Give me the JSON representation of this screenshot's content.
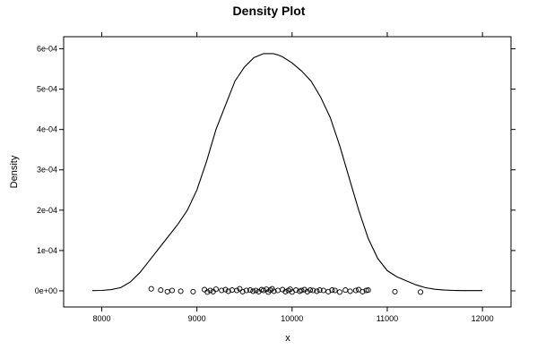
{
  "chart_data": {
    "type": "line",
    "title": "Density Plot",
    "xlabel": "x",
    "ylabel": "Density",
    "xlim": [
      7600,
      12300
    ],
    "ylim": [
      -4e-05,
      0.00063
    ],
    "x_ticks": [
      8000,
      9000,
      10000,
      11000,
      12000
    ],
    "x_tick_labels": [
      "8000",
      "9000",
      "10000",
      "11000",
      "12000"
    ],
    "y_ticks": [
      0,
      0.0001,
      0.0002,
      0.0003,
      0.0004,
      0.0005,
      0.0006
    ],
    "y_tick_labels": [
      "0e+00",
      "1e-04",
      "2e-04",
      "3e-04",
      "4e-04",
      "5e-04",
      "6e-04"
    ],
    "grid": false,
    "series": [
      {
        "kind": "density-curve",
        "x": [
          7900,
          8000,
          8100,
          8200,
          8300,
          8400,
          8500,
          8600,
          8700,
          8800,
          8900,
          9000,
          9100,
          9200,
          9300,
          9400,
          9500,
          9600,
          9700,
          9750,
          9800,
          9850,
          9900,
          10000,
          10100,
          10200,
          10300,
          10400,
          10500,
          10600,
          10700,
          10800,
          10900,
          11000,
          11100,
          11200,
          11300,
          11400,
          11500,
          11600,
          11700,
          11800,
          11900,
          12000
        ],
        "y": [
          5e-07,
          1e-06,
          3e-06,
          8e-06,
          2.2e-05,
          4.5e-05,
          7.5e-05,
          0.000105,
          0.000135,
          0.000165,
          0.0002,
          0.00025,
          0.00032,
          0.0004,
          0.00046,
          0.00052,
          0.000555,
          0.000578,
          0.000588,
          0.000588,
          0.000588,
          0.000585,
          0.00058,
          0.000565,
          0.000545,
          0.00052,
          0.00048,
          0.00043,
          0.00036,
          0.00028,
          0.0002,
          0.00013,
          8e-05,
          5e-05,
          3.5e-05,
          2.5e-05,
          1.5e-05,
          8e-06,
          4e-06,
          2e-06,
          1e-06,
          5e-07,
          5e-07,
          5e-07
        ]
      },
      {
        "kind": "jittered-points",
        "marker": "open-circle",
        "x": [
          8520,
          8620,
          8690,
          8740,
          8830,
          8960,
          9080,
          9110,
          9140,
          9170,
          9200,
          9260,
          9300,
          9330,
          9370,
          9420,
          9450,
          9480,
          9520,
          9560,
          9590,
          9620,
          9650,
          9680,
          9700,
          9730,
          9750,
          9770,
          9790,
          9810,
          9850,
          9900,
          9930,
          9960,
          9980,
          10000,
          10040,
          10080,
          10100,
          10130,
          10160,
          10190,
          10220,
          10260,
          10290,
          10330,
          10380,
          10420,
          10450,
          10500,
          10560,
          10610,
          10670,
          10700,
          10740,
          10780,
          10800,
          11080,
          11350
        ],
        "y": [
          5e-06,
          2e-06,
          -2e-06,
          1e-06,
          -1e-06,
          -2e-06,
          3e-06,
          -3e-06,
          1e-06,
          -2e-06,
          4e-06,
          1e-06,
          3e-06,
          -1e-06,
          2e-06,
          1e-06,
          5e-06,
          -2e-06,
          1e-06,
          2e-06,
          -1e-06,
          1e-06,
          -2e-06,
          3e-06,
          1e-06,
          4e-06,
          -3e-06,
          2e-06,
          5e-06,
          -1e-06,
          1e-06,
          3e-06,
          -2e-06,
          1e-06,
          4e-06,
          -3e-06,
          2e-06,
          -1e-06,
          1e-06,
          3e-06,
          -2e-06,
          2e-06,
          1e-06,
          -1e-06,
          2e-06,
          1e-06,
          -2e-06,
          2e-06,
          1e-06,
          -3e-06,
          2e-06,
          -1e-06,
          1e-06,
          3e-06,
          -2e-06,
          1e-06,
          2e-06,
          -2e-06,
          -3e-06
        ]
      }
    ]
  }
}
